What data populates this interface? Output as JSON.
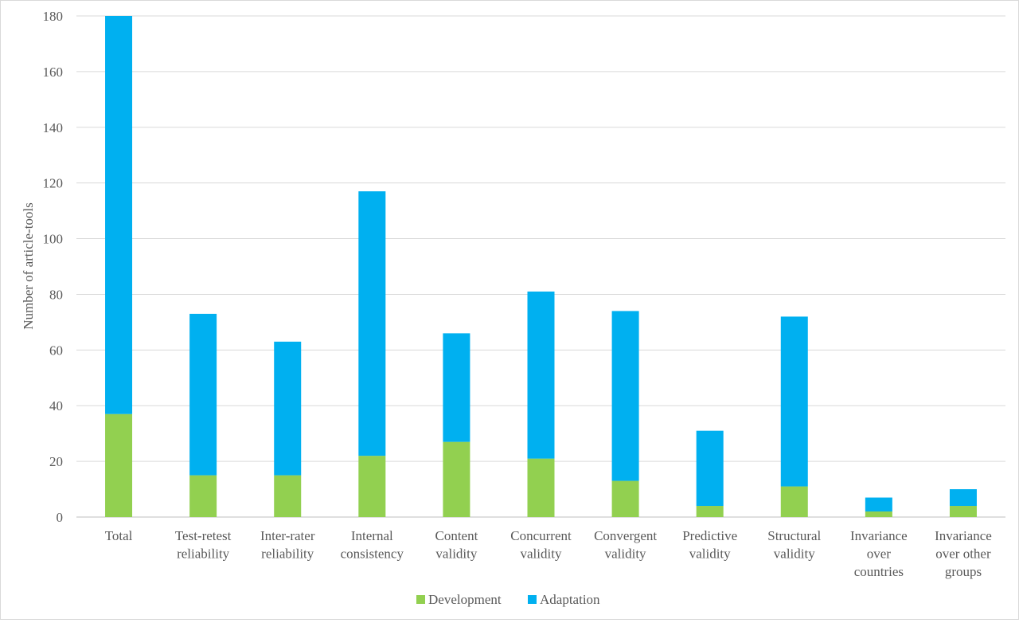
{
  "chart_data": {
    "type": "bar",
    "stacked": true,
    "ylabel": "Number of article-tools",
    "xlabel": "",
    "ylim": [
      0,
      180
    ],
    "yticks": [
      0,
      20,
      40,
      60,
      80,
      100,
      120,
      140,
      160,
      180
    ],
    "grid": true,
    "legend_position": "bottom",
    "categories": [
      [
        "Total"
      ],
      [
        "Test-retest",
        "reliability"
      ],
      [
        "Inter-rater",
        "reliability"
      ],
      [
        "Internal",
        "consistency"
      ],
      [
        "Content",
        "validity"
      ],
      [
        "Concurrent",
        "validity"
      ],
      [
        "Convergent",
        "validity"
      ],
      [
        "Predictive",
        "validity"
      ],
      [
        "Structural",
        "validity"
      ],
      [
        "Invariance",
        "over",
        "countries"
      ],
      [
        "Invariance",
        "over other",
        "groups"
      ]
    ],
    "series": [
      {
        "name": "Development",
        "color": "#92d050",
        "values": [
          37,
          15,
          15,
          22,
          27,
          21,
          13,
          4,
          11,
          2,
          4
        ]
      },
      {
        "name": "Adaptation",
        "color": "#00b0f0",
        "values": [
          143,
          58,
          48,
          95,
          39,
          60,
          61,
          27,
          61,
          5,
          6
        ]
      }
    ]
  }
}
